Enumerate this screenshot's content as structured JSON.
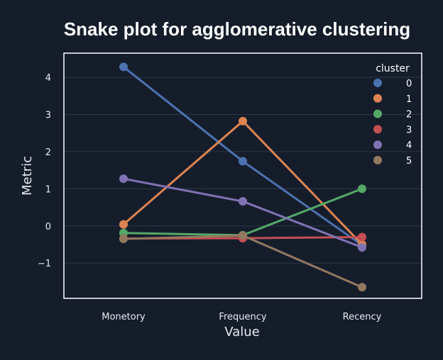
{
  "chart_data": {
    "type": "line",
    "title": "Snake plot for agglomerative clustering",
    "xlabel": "Value",
    "ylabel": "Metric",
    "categories": [
      "Monetory",
      "Frequency",
      "Recency"
    ],
    "ylim": [
      -1.95,
      4.65
    ],
    "yticks": [
      4,
      3,
      2,
      1,
      0,
      -1
    ],
    "ytick_labels": [
      "4",
      "3",
      "2",
      "1",
      "0",
      "−1"
    ],
    "grid": true,
    "legend": {
      "title": "cluster",
      "placement": "top-right"
    },
    "series": [
      {
        "name": "0",
        "color": "#4c72b0",
        "values": [
          4.28,
          1.74,
          -0.52
        ]
      },
      {
        "name": "1",
        "color": "#dd8452",
        "values": [
          0.04,
          2.82,
          -0.5
        ]
      },
      {
        "name": "2",
        "color": "#55a868",
        "values": [
          -0.19,
          -0.25,
          1.0
        ]
      },
      {
        "name": "3",
        "color": "#c44e52",
        "values": [
          -0.34,
          -0.33,
          -0.3
        ]
      },
      {
        "name": "4",
        "color": "#8172b3",
        "values": [
          1.27,
          0.66,
          -0.58
        ]
      },
      {
        "name": "5",
        "color": "#937860",
        "values": [
          -0.35,
          -0.26,
          -1.65
        ]
      }
    ]
  }
}
